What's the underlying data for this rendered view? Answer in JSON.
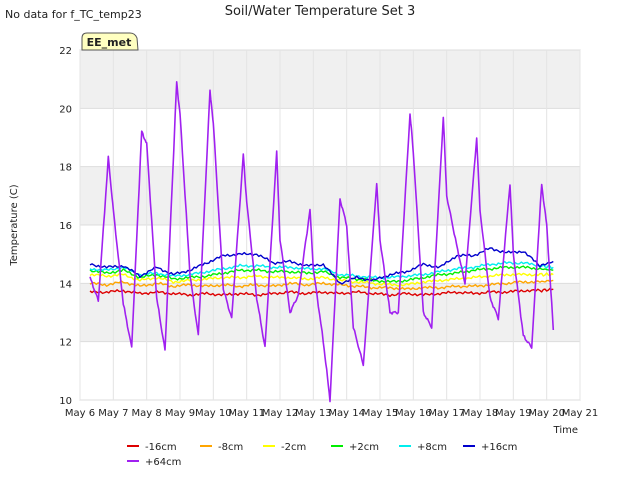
{
  "nodata_note": "No data for f_TC_temp23",
  "badge": "EE_met",
  "chart_data": {
    "type": "line",
    "title": "Soil/Water Temperature Set 3",
    "xlabel": "Time",
    "ylabel": "Temperature (C)",
    "xlim": [
      6,
      21
    ],
    "ylim": [
      10,
      22
    ],
    "x_ticks": [
      6,
      7,
      8,
      9,
      10,
      11,
      12,
      13,
      14,
      15,
      16,
      17,
      18,
      19,
      20,
      21
    ],
    "x_tick_labels": [
      "May 6",
      "May 7",
      "May 8",
      "May 9",
      "May 10",
      "May 11",
      "May 12",
      "May 13",
      "May 14",
      "May 15",
      "May 16",
      "May 17",
      "May 18",
      "May 19",
      "May 20",
      "May 21"
    ],
    "y_ticks": [
      10,
      12,
      14,
      16,
      18,
      20,
      22
    ],
    "y_tick_labels": [
      "10",
      "12",
      "14",
      "16",
      "18",
      "20",
      "22"
    ],
    "grid": true,
    "legend_position": "bottom",
    "series": [
      {
        "name": "-16cm",
        "color": "#dd0000",
        "x": [
          6.3,
          6.8,
          7.3,
          7.8,
          8.3,
          8.8,
          9.3,
          9.8,
          10.3,
          10.8,
          11.3,
          11.8,
          12.3,
          12.8,
          13.3,
          13.8,
          14.3,
          14.8,
          15.3,
          15.8,
          16.3,
          16.8,
          17.3,
          17.8,
          18.3,
          18.8,
          19.3,
          19.8,
          20.2
        ],
        "y": [
          13.7,
          13.7,
          13.75,
          13.65,
          13.7,
          13.65,
          13.6,
          13.65,
          13.6,
          13.65,
          13.6,
          13.65,
          13.7,
          13.65,
          13.7,
          13.65,
          13.7,
          13.65,
          13.6,
          13.65,
          13.6,
          13.65,
          13.7,
          13.65,
          13.7,
          13.7,
          13.75,
          13.75,
          13.8
        ]
      },
      {
        "name": "-8cm",
        "color": "#ffa500",
        "x": [
          6.3,
          6.8,
          7.3,
          7.8,
          8.3,
          8.8,
          9.3,
          9.8,
          10.3,
          10.8,
          11.3,
          11.8,
          12.3,
          12.8,
          13.3,
          13.8,
          14.3,
          14.8,
          15.3,
          15.8,
          16.3,
          16.8,
          17.3,
          17.8,
          18.3,
          18.8,
          19.3,
          19.8,
          20.2
        ],
        "y": [
          14.0,
          13.95,
          14.05,
          13.9,
          14.0,
          13.9,
          13.95,
          13.9,
          13.95,
          13.9,
          13.95,
          13.9,
          14.0,
          13.95,
          14.0,
          13.95,
          13.9,
          13.85,
          13.85,
          13.8,
          13.85,
          13.85,
          13.9,
          13.9,
          13.95,
          14.0,
          14.05,
          14.05,
          14.1
        ]
      },
      {
        "name": "-2cm",
        "color": "#ffff00",
        "x": [
          6.3,
          6.8,
          7.3,
          7.8,
          8.3,
          8.8,
          9.3,
          9.8,
          10.3,
          10.8,
          11.3,
          11.8,
          12.3,
          12.8,
          13.3,
          13.8,
          14.3,
          14.8,
          15.3,
          15.8,
          16.3,
          16.8,
          17.3,
          17.8,
          18.3,
          18.8,
          19.3,
          19.8,
          20.2
        ],
        "y": [
          14.3,
          14.25,
          14.3,
          14.1,
          14.2,
          14.05,
          14.1,
          14.15,
          14.2,
          14.2,
          14.25,
          14.2,
          14.2,
          14.15,
          14.2,
          14.1,
          14.05,
          14.0,
          13.95,
          13.95,
          14.05,
          14.1,
          14.15,
          14.2,
          14.25,
          14.3,
          14.3,
          14.3,
          14.3
        ]
      },
      {
        "name": "+2cm",
        "color": "#00ee00",
        "x": [
          6.3,
          6.8,
          7.3,
          7.8,
          8.3,
          8.8,
          9.3,
          9.8,
          10.3,
          10.8,
          11.3,
          11.8,
          12.3,
          12.8,
          13.3,
          13.8,
          14.3,
          14.8,
          15.3,
          15.8,
          16.3,
          16.8,
          17.3,
          17.8,
          18.3,
          18.8,
          19.3,
          19.8,
          20.2
        ],
        "y": [
          14.45,
          14.35,
          14.45,
          14.2,
          14.3,
          14.15,
          14.2,
          14.25,
          14.35,
          14.45,
          14.45,
          14.4,
          14.4,
          14.35,
          14.4,
          14.2,
          14.15,
          14.1,
          14.05,
          14.1,
          14.2,
          14.3,
          14.35,
          14.45,
          14.5,
          14.55,
          14.55,
          14.5,
          14.45
        ]
      },
      {
        "name": "+8cm",
        "color": "#00eeee",
        "x": [
          6.3,
          6.8,
          7.3,
          7.8,
          8.3,
          8.8,
          9.3,
          9.8,
          10.3,
          10.8,
          11.3,
          11.8,
          12.3,
          12.8,
          13.3,
          13.8,
          14.3,
          14.8,
          15.3,
          15.8,
          16.3,
          16.8,
          17.3,
          17.8,
          18.3,
          18.8,
          19.3,
          19.8,
          20.2
        ],
        "y": [
          14.5,
          14.45,
          14.55,
          14.3,
          14.35,
          14.25,
          14.3,
          14.4,
          14.5,
          14.6,
          14.6,
          14.55,
          14.55,
          14.5,
          14.5,
          14.3,
          14.25,
          14.2,
          14.2,
          14.25,
          14.3,
          14.4,
          14.5,
          14.55,
          14.65,
          14.7,
          14.7,
          14.6,
          14.55
        ]
      },
      {
        "name": "+16cm",
        "color": "#0000cc",
        "x": [
          6.3,
          6.8,
          7.3,
          7.8,
          8.3,
          8.8,
          9.3,
          9.8,
          10.3,
          10.8,
          11.3,
          11.8,
          12.3,
          12.8,
          13.3,
          13.8,
          14.3,
          14.8,
          15.3,
          15.8,
          16.3,
          16.8,
          17.3,
          17.8,
          18.3,
          18.8,
          19.3,
          19.8,
          20.2
        ],
        "y": [
          14.65,
          14.55,
          14.6,
          14.25,
          14.55,
          14.3,
          14.45,
          14.7,
          14.95,
          15.0,
          15.0,
          14.7,
          14.75,
          14.6,
          14.65,
          14.0,
          14.2,
          14.1,
          14.3,
          14.4,
          14.65,
          14.55,
          14.95,
          14.95,
          15.2,
          15.05,
          15.1,
          14.6,
          14.75
        ]
      },
      {
        "name": "+64cm",
        "color": "#a020f0",
        "x": [
          6.3,
          6.55,
          6.85,
          7.0,
          7.3,
          7.55,
          7.85,
          8.0,
          8.3,
          8.55,
          8.9,
          9.0,
          9.3,
          9.55,
          9.9,
          10.0,
          10.3,
          10.55,
          10.9,
          11.0,
          11.3,
          11.55,
          11.9,
          12.0,
          12.3,
          12.55,
          12.9,
          13.0,
          13.3,
          13.5,
          13.8,
          14.0,
          14.2,
          14.5,
          14.9,
          15.0,
          15.3,
          15.55,
          15.9,
          16.0,
          16.3,
          16.55,
          16.9,
          17.0,
          17.3,
          17.55,
          17.9,
          18.0,
          18.3,
          18.55,
          18.9,
          19.0,
          19.3,
          19.55,
          19.85,
          20.0,
          20.2
        ],
        "y": [
          14.2,
          13.4,
          18.3,
          16.5,
          13.3,
          11.8,
          19.2,
          18.8,
          13.5,
          11.7,
          20.9,
          19.8,
          14.3,
          12.2,
          20.6,
          19.5,
          13.8,
          12.8,
          18.4,
          16.8,
          13.5,
          11.8,
          18.5,
          15.5,
          13.0,
          13.6,
          16.5,
          14.5,
          12.0,
          10.0,
          16.9,
          16.0,
          12.5,
          11.2,
          17.4,
          15.5,
          13.0,
          13.0,
          19.8,
          18.5,
          13.0,
          12.5,
          19.7,
          17.0,
          15.3,
          14.0,
          19.0,
          16.5,
          13.5,
          12.8,
          17.4,
          15.0,
          12.2,
          11.8,
          17.4,
          16.0,
          12.4
        ]
      }
    ]
  }
}
